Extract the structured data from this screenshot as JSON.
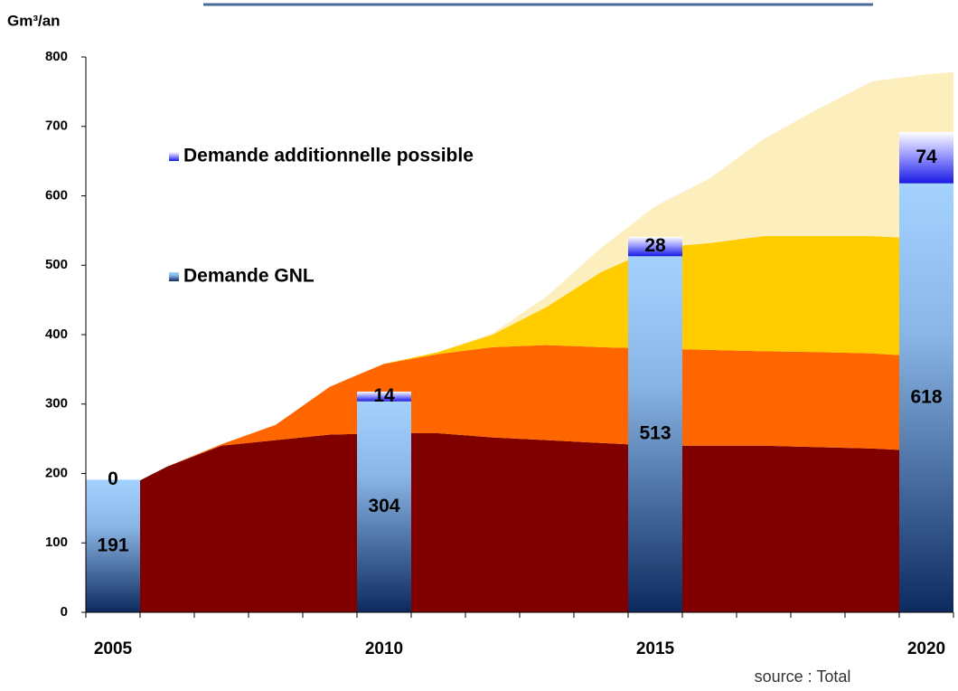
{
  "chart_data": {
    "type": "stacked-bar-area",
    "y_label": "Gm³/an",
    "source": "source : Total",
    "ylim": [
      0,
      800
    ],
    "yticks": [
      0,
      100,
      200,
      300,
      400,
      500,
      600,
      700,
      800
    ],
    "xlim": [
      2004.5,
      2020.5
    ],
    "xticks": [
      2004.5,
      2005.5,
      2006.5,
      2007.5,
      2008.5,
      2009.5,
      2010.5,
      2011.5,
      2012.5,
      2013.5,
      2014.5,
      2015.5,
      2016.5,
      2017.5,
      2018.5,
      2019.5,
      2020.5
    ],
    "categories": [
      "2005",
      "2010",
      "2015",
      "2020"
    ],
    "series": [
      {
        "name": "Demande GNL",
        "color": "#99ccff",
        "values": [
          191,
          304,
          513,
          618
        ]
      },
      {
        "name": "Demande additionnelle possible",
        "color": "#3333ff",
        "values": [
          0,
          14,
          28,
          74
        ]
      }
    ],
    "area_x": [
      2005.5,
      2006,
      2007,
      2008,
      2009,
      2010,
      2011,
      2012,
      2013,
      2014,
      2015,
      2016,
      2017,
      2018,
      2019,
      2020,
      2020.5
    ],
    "areas": [
      {
        "color": "#800000",
        "values": [
          190,
          210,
          240,
          248,
          256,
          258,
          258,
          252,
          248,
          244,
          240,
          240,
          240,
          238,
          236,
          232,
          230
        ]
      },
      {
        "color": "#ff6600",
        "values": [
          0,
          0,
          2,
          22,
          69,
          100,
          114,
          130,
          137,
          138,
          140,
          138,
          136,
          137,
          137,
          136,
          138
        ]
      },
      {
        "color": "#ffcc00",
        "values": [
          0,
          0,
          0,
          0,
          0,
          0,
          3,
          18,
          55,
          108,
          145,
          154,
          166,
          167,
          169,
          170,
          170
        ]
      },
      {
        "color": "#fdeebe",
        "values": [
          0,
          0,
          0,
          0,
          0,
          0,
          0,
          2,
          15,
          35,
          60,
          93,
          140,
          183,
          223,
          237,
          240
        ]
      }
    ]
  }
}
